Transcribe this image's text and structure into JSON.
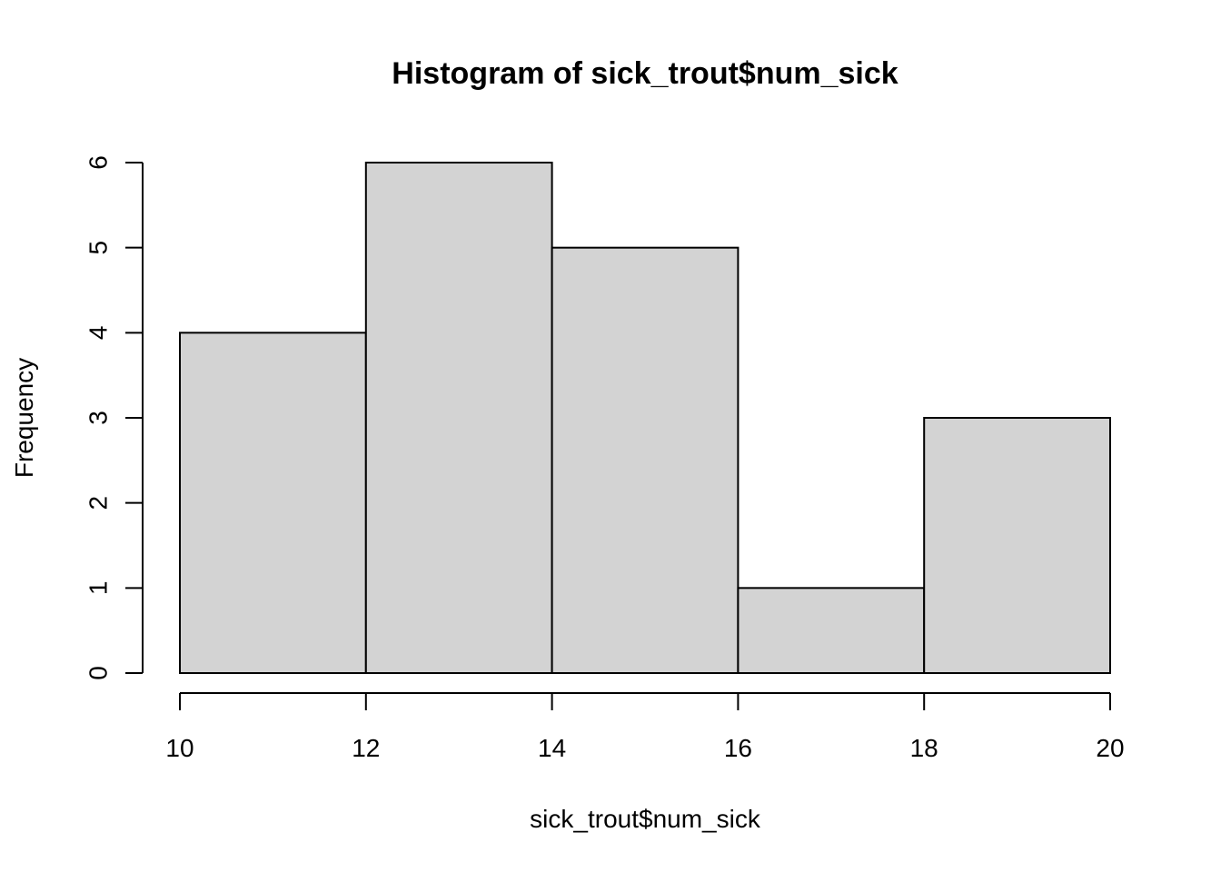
{
  "chart_data": {
    "type": "bar",
    "subtype": "histogram",
    "title": "Histogram of sick_trout$num_sick",
    "xlabel": "sick_trout$num_sick",
    "ylabel": "Frequency",
    "bins": [
      {
        "from": 10,
        "to": 12,
        "count": 4
      },
      {
        "from": 12,
        "to": 14,
        "count": 6
      },
      {
        "from": 14,
        "to": 16,
        "count": 5
      },
      {
        "from": 16,
        "to": 18,
        "count": 1
      },
      {
        "from": 18,
        "to": 20,
        "count": 3
      }
    ],
    "x_ticks": [
      "10",
      "12",
      "14",
      "16",
      "18",
      "20"
    ],
    "y_ticks": [
      "0",
      "1",
      "2",
      "3",
      "4",
      "5",
      "6"
    ],
    "xlim": [
      10,
      20
    ],
    "ylim": [
      0,
      6
    ],
    "grid": false,
    "legend": "none",
    "colors": {
      "bar_fill": "#d3d3d3",
      "bar_stroke": "#000000"
    }
  }
}
